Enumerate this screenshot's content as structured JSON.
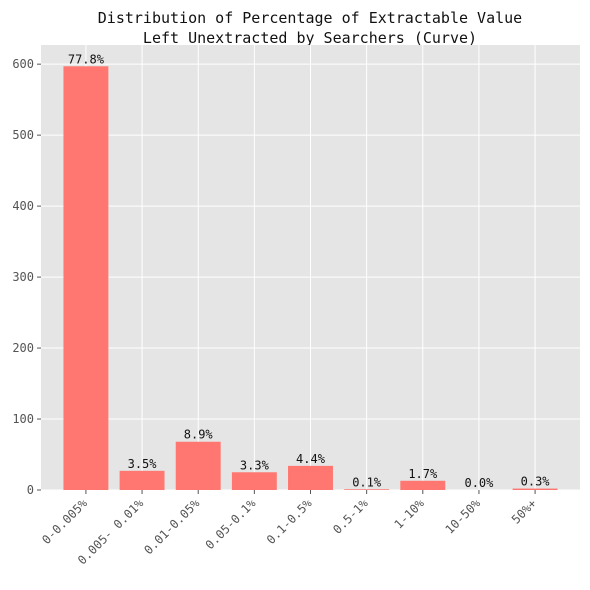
{
  "chart_data": {
    "type": "bar",
    "title": "Distribution of Percentage of Extractable Value\nLeft Unextracted by Searchers (Curve)",
    "xlabel": "",
    "ylabel": "",
    "categories": [
      "0-0.005%",
      "0.005- 0.01%",
      "0.01-0.05%",
      "0.05-0.1%",
      "0.1-0.5%",
      "0.5-1%",
      "1-10%",
      "10-50%",
      "50%+"
    ],
    "values": [
      597,
      27,
      68,
      25,
      34,
      1,
      13,
      0,
      2
    ],
    "data_labels": [
      "77.8%",
      "3.5%",
      "8.9%",
      "3.3%",
      "4.4%",
      "0.1%",
      "1.7%",
      "0.0%",
      "0.3%"
    ],
    "ylim": [
      0,
      627
    ],
    "yticks": [
      0,
      100,
      200,
      300,
      400,
      500,
      600
    ],
    "grid": true,
    "colors": {
      "bar": "#ff7770",
      "plot_background": "#e5e5e5",
      "grid": "#ffffff",
      "tick_text": "#555555",
      "title_text": "#111111"
    }
  }
}
